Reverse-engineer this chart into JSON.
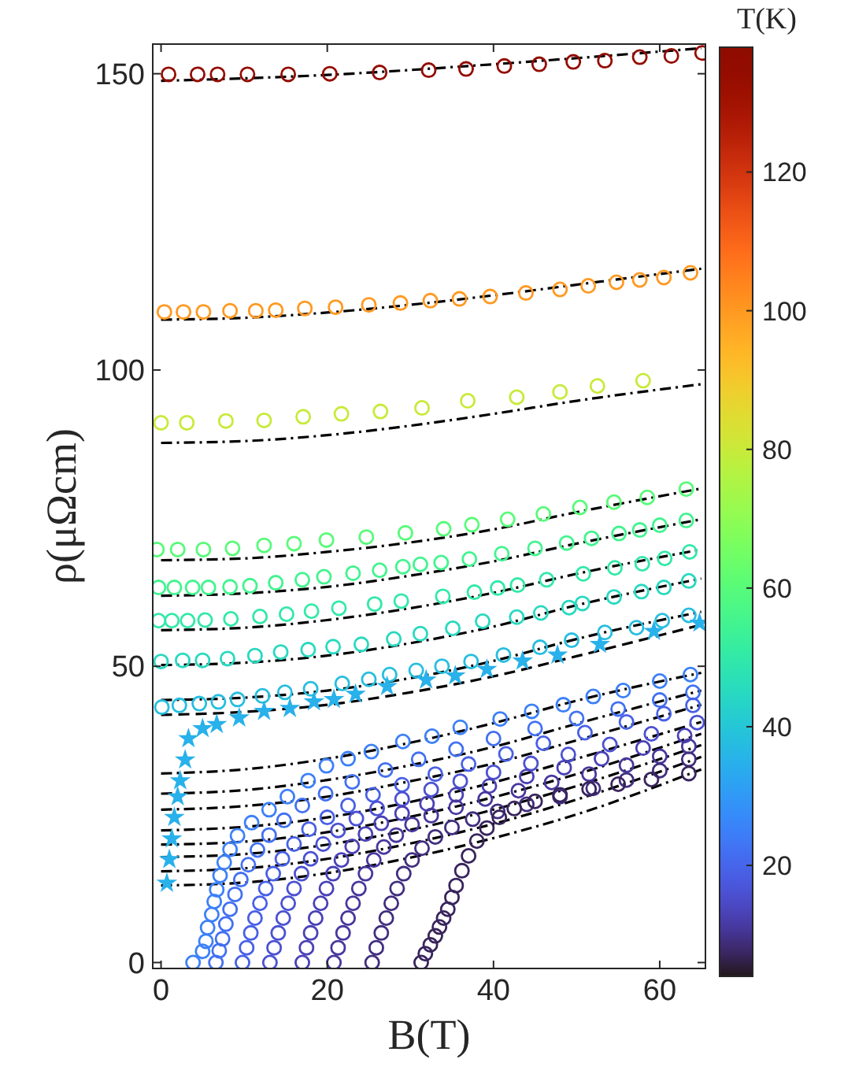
{
  "chart_data": {
    "type": "scatter",
    "xlabel": "B(T)",
    "ylabel": "ρ(μΩcm)",
    "clabel": "T(K)",
    "xlim": [
      -1,
      65.5
    ],
    "ylim": [
      -1,
      155
    ],
    "xticks": [
      0,
      20,
      40,
      60
    ],
    "yticks": [
      0,
      50,
      100,
      150
    ],
    "clim": [
      4,
      138
    ],
    "cticks": [
      20,
      40,
      60,
      80,
      100,
      120
    ],
    "grid": false,
    "marker": "circle",
    "series": [
      {
        "type": "line",
        "color": "#000000",
        "line_style": "dashdot",
        "marker": "none",
        "x": [
          0,
          20,
          40,
          65
        ],
        "values": [
          148.8,
          149.8,
          151.6,
          154.3
        ]
      },
      {
        "type": "line",
        "color": "#000000",
        "line_style": "dashdot",
        "marker": "none",
        "x": [
          0,
          10,
          20,
          30,
          40,
          50,
          65
        ],
        "values": [
          108.5,
          108.8,
          109.7,
          111,
          112.6,
          114.4,
          117.1
        ]
      },
      {
        "type": "line",
        "color": "#000000",
        "line_style": "dashdot",
        "marker": "none",
        "x": [
          0,
          10,
          20,
          30,
          40,
          50,
          65
        ],
        "values": [
          87.7,
          88,
          89,
          90.6,
          92.6,
          94.8,
          97.6
        ]
      },
      {
        "type": "line",
        "color": "#000000",
        "line_style": "dashdot",
        "marker": "none",
        "x": [
          0,
          10,
          20,
          30,
          40,
          50,
          65
        ],
        "values": [
          67.9,
          68.2,
          69.3,
          70.9,
          73.1,
          76,
          80
        ]
      },
      {
        "type": "line",
        "color": "#000000",
        "line_style": "dashdot",
        "marker": "none",
        "x": [
          0,
          10,
          20,
          30,
          40,
          50,
          65
        ],
        "values": [
          61.9,
          62.3,
          63.4,
          65.3,
          67.7,
          70.7,
          74.8
        ]
      },
      {
        "type": "line",
        "color": "#000000",
        "line_style": "dashdot",
        "marker": "none",
        "x": [
          0,
          10,
          20,
          30,
          40,
          50,
          65
        ],
        "values": [
          56.1,
          56.5,
          57.8,
          59.8,
          62.4,
          65.6,
          69.7
        ]
      },
      {
        "type": "line",
        "color": "#000000",
        "line_style": "dashdot",
        "marker": "none",
        "x": [
          0,
          10,
          20,
          30,
          40,
          50,
          65
        ],
        "values": [
          50.2,
          50.6,
          51.8,
          53.9,
          56.7,
          60.3,
          64.8
        ]
      },
      {
        "type": "line",
        "color": "#000000",
        "line_style": "dashdot",
        "marker": "none",
        "x": [
          0,
          10,
          20,
          30,
          40,
          50,
          65
        ],
        "values": [
          44.3,
          44.7,
          45.9,
          48,
          50.9,
          54.6,
          59.2
        ]
      },
      {
        "type": "line",
        "color": "#000000",
        "line_style": "dashed",
        "marker": "none",
        "x": [
          0,
          10,
          20,
          30,
          40,
          50,
          65
        ],
        "values": [
          41.8,
          42.3,
          43.5,
          45.6,
          48.3,
          51.7,
          57
        ]
      },
      {
        "type": "line",
        "color": "#000000",
        "line_style": "dashdot",
        "marker": "none",
        "x": [
          0,
          10,
          20,
          30,
          40,
          50,
          65
        ],
        "values": [
          31.9,
          32.6,
          34.4,
          37.1,
          40.4,
          44.2,
          48.9
        ]
      },
      {
        "type": "line",
        "color": "#000000",
        "line_style": "dashdot",
        "marker": "none",
        "x": [
          0,
          10,
          20,
          30,
          40,
          50,
          65
        ],
        "values": [
          28.5,
          29.1,
          30.8,
          33.3,
          36.4,
          40.3,
          45.9
        ]
      },
      {
        "type": "line",
        "color": "#000000",
        "line_style": "dashdot",
        "marker": "none",
        "x": [
          0,
          10,
          20,
          30,
          40,
          50,
          65
        ],
        "values": [
          25.8,
          26.4,
          28,
          30.6,
          33.6,
          37.5,
          43.5
        ]
      },
      {
        "type": "line",
        "color": "#000000",
        "line_style": "dashdot",
        "marker": "none",
        "x": [
          0,
          10,
          20,
          30,
          40,
          50,
          65
        ],
        "values": [
          22.3,
          22.9,
          24.5,
          27.1,
          30.4,
          34.4,
          40.6
        ]
      },
      {
        "type": "line",
        "color": "#000000",
        "line_style": "dashdot",
        "marker": "none",
        "x": [
          0,
          10,
          20,
          30,
          40,
          50,
          65
        ],
        "values": [
          19.9,
          20.4,
          22,
          24.6,
          27.9,
          31.8,
          38.6
        ]
      },
      {
        "type": "line",
        "color": "#000000",
        "line_style": "dashdot",
        "marker": "none",
        "x": [
          0,
          10,
          20,
          30,
          40,
          50,
          65
        ],
        "values": [
          17.8,
          18.3,
          19.9,
          22.4,
          25.8,
          29.8,
          36.7
        ]
      },
      {
        "type": "line",
        "color": "#000000",
        "line_style": "dashdot",
        "marker": "none",
        "x": [
          0,
          10,
          20,
          30,
          40,
          50,
          65
        ],
        "values": [
          15.4,
          15.9,
          17.5,
          20.1,
          23.4,
          27.5,
          34.7
        ]
      },
      {
        "type": "line",
        "color": "#000000",
        "line_style": "dashdot",
        "marker": "none",
        "x": [
          0,
          10,
          20,
          30,
          40,
          50,
          65
        ],
        "values": [
          13,
          13.5,
          15.1,
          17.7,
          21,
          25,
          32.6
        ]
      },
      {
        "x": [
          0.9,
          4.4,
          6.8,
          10.4,
          15.3,
          20.3,
          26.3,
          32.2,
          36.7,
          41.3,
          45.5,
          49.6,
          53.4,
          57.6,
          61.4,
          65.1
        ],
        "values": [
          149.9,
          149.9,
          149.9,
          149.9,
          149.9,
          150,
          150.2,
          150.6,
          150.8,
          151.3,
          151.6,
          152,
          152.2,
          152.8,
          153,
          153.5
        ],
        "cvalues": [
          135,
          135,
          135,
          135,
          135,
          135,
          135,
          135,
          135,
          135,
          135,
          135,
          135,
          135,
          135,
          135
        ]
      },
      {
        "x": [
          0.4,
          2.7,
          5.1,
          8.3,
          11.4,
          13.8,
          17.3,
          21,
          25,
          28.8,
          32.4,
          35.9,
          39.6,
          43.9,
          48,
          51.4,
          54.8,
          57.6,
          60.5,
          63.7
        ],
        "values": [
          109.8,
          109.8,
          109.8,
          110,
          110,
          110.1,
          110.4,
          110.6,
          111,
          111.3,
          111.7,
          112,
          112.4,
          113,
          113.6,
          114.2,
          114.8,
          115.2,
          115.6,
          116.4
        ],
        "cvalues": [
          100,
          100,
          100,
          100,
          100,
          100,
          100,
          100,
          100,
          100,
          100,
          100,
          100,
          100,
          100,
          100,
          100,
          100,
          100,
          100
        ]
      },
      {
        "x": [
          0,
          3.1,
          7.8,
          12.4,
          17.1,
          21.7,
          26.4,
          31.4,
          36.9,
          42.8,
          48,
          52.5,
          58
        ],
        "values": [
          91.1,
          91.1,
          91.4,
          91.5,
          92.1,
          92.6,
          93,
          93.6,
          94.8,
          95.4,
          96.3,
          97.3,
          98.2
        ],
        "cvalues": [
          80,
          80,
          80,
          80,
          80,
          80,
          80,
          80,
          80,
          80,
          80,
          80,
          80
        ]
      },
      {
        "x": [
          -0.5,
          2,
          5.1,
          8.6,
          12.4,
          16,
          19.9,
          24.7,
          29.4,
          34,
          37.4,
          41.7,
          46,
          50.4,
          54.5,
          58.5,
          63.2
        ],
        "values": [
          69.7,
          69.7,
          69.7,
          69.9,
          70.4,
          70.7,
          71.3,
          71.8,
          72.5,
          73.2,
          73.9,
          74.8,
          75.7,
          76.8,
          77.7,
          78.5,
          79.9
        ],
        "cvalues": [
          60,
          60,
          60,
          60,
          60,
          60,
          60,
          60,
          60,
          60,
          60,
          60,
          60,
          60,
          60,
          60,
          60
        ]
      },
      {
        "x": [
          -0.3,
          1.6,
          3.8,
          5.7,
          8.3,
          10.7,
          13.8,
          17,
          19.6,
          23.1,
          26.3,
          29.1,
          31.2,
          33.7,
          37.1,
          41,
          45,
          48.8,
          51.8,
          55.1,
          57.6,
          60,
          63.2
        ],
        "values": [
          63.3,
          63.3,
          63.3,
          63.3,
          63.4,
          63.6,
          64.1,
          64.6,
          65.1,
          65.7,
          66.2,
          66.8,
          67.2,
          67.5,
          68.1,
          69,
          69.9,
          70.8,
          71.6,
          72.4,
          73,
          73.8,
          74.6
        ],
        "cvalues": [
          55,
          55,
          55,
          55,
          55,
          55,
          55,
          55,
          55,
          55,
          55,
          55,
          55,
          55,
          55,
          55,
          55,
          55,
          55,
          55,
          55,
          55,
          55
        ]
      },
      {
        "x": [
          -0.3,
          1.3,
          3.2,
          5.3,
          8.4,
          11.9,
          15.1,
          18.1,
          21.4,
          25.7,
          28.9,
          33.9,
          37.7,
          40.5,
          42.9,
          46.4,
          50.8,
          54.6,
          57.9,
          60.6,
          63.6
        ],
        "values": [
          57.7,
          57.7,
          57.7,
          57.8,
          58,
          58.4,
          58.8,
          59.3,
          59.8,
          60.5,
          61,
          61.8,
          62.5,
          63.2,
          63.7,
          64.6,
          65.6,
          66.6,
          67.3,
          68.2,
          69.3
        ],
        "cvalues": [
          50,
          50,
          50,
          50,
          50,
          50,
          50,
          50,
          50,
          50,
          50,
          50,
          50,
          50,
          50,
          50,
          50,
          50,
          50,
          50,
          50
        ]
      },
      {
        "x": [
          0,
          2.6,
          5,
          8,
          11.3,
          14.4,
          17.7,
          20.7,
          24.1,
          28,
          31.2,
          35.1,
          38.7,
          42.8,
          45.7,
          49.1,
          50.7,
          54.5,
          57.8,
          60.5,
          63.5
        ],
        "values": [
          50.8,
          51,
          51,
          51.3,
          51.8,
          52.4,
          52.8,
          53.3,
          53.7,
          54.6,
          55.5,
          56.4,
          57.6,
          58.3,
          59,
          59.9,
          60.6,
          61.7,
          62.6,
          63.3,
          64.4
        ],
        "cvalues": [
          45,
          45,
          45,
          45,
          45,
          45,
          45,
          45,
          45,
          45,
          45,
          45,
          45,
          45,
          45,
          45,
          45,
          45,
          45,
          45,
          45
        ]
      },
      {
        "x": [
          0.1,
          2.2,
          4.6,
          6.9,
          9.2,
          12.2,
          14.9,
          18,
          21.8,
          25,
          27.5,
          30.7,
          33.8,
          37.3,
          41.2,
          45.6,
          49.4,
          53.4,
          57.2,
          60.3,
          63.5
        ],
        "values": [
          43.1,
          43.4,
          43.7,
          44,
          44.4,
          45,
          45.6,
          46.2,
          47.1,
          47.8,
          48.6,
          49.3,
          50,
          50.8,
          51.9,
          53.2,
          54.4,
          55.7,
          56.5,
          57.7,
          58.6
        ],
        "cvalues": [
          38,
          38,
          38,
          38,
          38,
          38,
          38,
          38,
          38,
          38,
          38,
          38,
          38,
          38,
          38,
          38,
          38,
          38,
          38,
          38,
          38
        ]
      },
      {
        "marker": "star",
        "x": [
          0.7,
          1,
          1.3,
          1.6,
          2,
          2.3,
          2.9,
          3.3,
          5,
          6.7,
          9.4,
          12.4,
          15.5,
          18.4,
          20.8,
          23.4,
          27.2,
          31.9,
          35.4,
          39.2,
          43.5,
          47.7,
          52.8,
          59.3,
          64.8
        ],
        "values": [
          13.4,
          17.4,
          20.9,
          24.5,
          28,
          30.7,
          34.2,
          37.8,
          39.5,
          40.2,
          41.3,
          42.4,
          42.9,
          44,
          44.4,
          45.3,
          46.6,
          47.7,
          48.4,
          49.5,
          50.9,
          51.9,
          53.7,
          55.9,
          57.3
        ],
        "cvalues": [
          35,
          35,
          35,
          35,
          35,
          35,
          35,
          35,
          35,
          35,
          35,
          35,
          35,
          35,
          35,
          35,
          35,
          35,
          35,
          35,
          35,
          35,
          35,
          35,
          35
        ]
      },
      {
        "x": [
          3.85,
          5,
          5.4,
          5.6,
          6.1,
          6.4,
          6.7,
          7.1,
          7.6,
          8.3,
          9.2,
          10.9,
          13,
          15.2,
          17.7,
          19.9,
          22.5,
          25.3,
          29.1,
          32.6,
          36,
          40.8,
          44.6,
          48.4,
          52,
          55.6,
          60,
          63.7
        ],
        "values": [
          0,
          1.9,
          3.6,
          5.9,
          8.1,
          10.3,
          12.3,
          14.7,
          16.9,
          19.1,
          21.4,
          23.6,
          25.8,
          28,
          30.7,
          33.2,
          34.4,
          35.6,
          37.3,
          38.2,
          39.7,
          41.1,
          42.4,
          43.5,
          44.9,
          45.9,
          47.5,
          48.6
        ],
        "cvalues": [
          25,
          25,
          25,
          25,
          25,
          25,
          25,
          25,
          25,
          25,
          25,
          25,
          25,
          25,
          25,
          25,
          25,
          25,
          25,
          25,
          25,
          25,
          25,
          25,
          25,
          25,
          25,
          25
        ]
      },
      {
        "x": [
          6.6,
          7,
          7.4,
          7.8,
          8.3,
          8.9,
          9.6,
          10.5,
          11.6,
          13,
          14.8,
          17,
          19.8,
          23,
          27,
          31,
          35.5,
          40,
          45,
          50,
          55,
          60,
          64
        ],
        "values": [
          0,
          2,
          4,
          6.5,
          9,
          11.5,
          14,
          16.5,
          19,
          21.5,
          24,
          26.5,
          28.5,
          30.5,
          32.5,
          34.3,
          36,
          37.8,
          39.5,
          41.2,
          42.8,
          44.3,
          45.6
        ],
        "cvalues": [
          22,
          22,
          22,
          22,
          22,
          22,
          22,
          22,
          22,
          22,
          22,
          22,
          22,
          22,
          22,
          22,
          22,
          22,
          22,
          22,
          22,
          22,
          22
        ]
      },
      {
        "x": [
          9.8,
          10.3,
          10.8,
          11.3,
          11.9,
          12.6,
          13.5,
          14.6,
          16,
          17.8,
          20,
          22.5,
          25.5,
          29,
          33,
          37,
          41.5,
          46,
          51,
          56,
          60.5,
          64
        ],
        "values": [
          0,
          2.5,
          5,
          7.5,
          10,
          12.5,
          15,
          17.5,
          20,
          22.5,
          24.5,
          26.5,
          28.3,
          30,
          31.8,
          33.5,
          35.2,
          37,
          38.8,
          40.6,
          42,
          43.4
        ],
        "cvalues": [
          19,
          19,
          19,
          19,
          19,
          19,
          19,
          19,
          19,
          19,
          19,
          19,
          19,
          19,
          19,
          19,
          19,
          19,
          19,
          19,
          19,
          19
        ]
      },
      {
        "x": [
          13.1,
          13.6,
          14.1,
          14.7,
          15.3,
          16,
          16.9,
          18,
          19.5,
          21.3,
          23.5,
          26,
          29,
          32.5,
          36,
          40,
          44.5,
          49,
          54,
          59,
          64.5
        ],
        "values": [
          0,
          2.5,
          5,
          7.5,
          10,
          12.5,
          15,
          17.5,
          20,
          22.3,
          24.3,
          26,
          27.6,
          29.2,
          30.6,
          32.1,
          33.6,
          35.1,
          36.8,
          38.6,
          40.5
        ],
        "cvalues": [
          16,
          16,
          16,
          16,
          16,
          16,
          16,
          16,
          16,
          16,
          16,
          16,
          16,
          16,
          16,
          16,
          16,
          16,
          16,
          16,
          16
        ]
      },
      {
        "x": [
          17,
          17.5,
          18,
          18.6,
          19.2,
          19.9,
          20.7,
          21.7,
          23,
          24.6,
          26.5,
          29,
          32,
          35.5,
          39.5,
          44,
          48.5,
          53,
          58,
          63
        ],
        "values": [
          0,
          2.5,
          5,
          7.5,
          10,
          12.5,
          15,
          17.3,
          19.6,
          21.7,
          23.5,
          25.2,
          26.8,
          28.3,
          29.8,
          31.4,
          32.9,
          34.4,
          36.2,
          38.3
        ],
        "cvalues": [
          13,
          13,
          13,
          13,
          13,
          13,
          13,
          13,
          13,
          13,
          13,
          13,
          13,
          13,
          13,
          13,
          13,
          13,
          13,
          13
        ]
      },
      {
        "x": [
          20.8,
          21.3,
          21.9,
          22.5,
          23.1,
          23.8,
          24.6,
          25.6,
          26.8,
          28.3,
          30.2,
          32.5,
          35.5,
          39,
          43,
          47,
          51.5,
          56,
          60,
          63.5
        ],
        "values": [
          0,
          2.5,
          5,
          7.5,
          10,
          12.5,
          15,
          17.3,
          19.5,
          21.5,
          23.3,
          24.8,
          26.2,
          27.6,
          29,
          30.4,
          31.8,
          33.3,
          34.8,
          36.5
        ],
        "cvalues": [
          11,
          11,
          11,
          11,
          11,
          11,
          11,
          11,
          11,
          11,
          11,
          11,
          11,
          11,
          11,
          11,
          11,
          11,
          11,
          11
        ]
      },
      {
        "x": [
          25.4,
          25.9,
          26.5,
          27.1,
          27.7,
          28.4,
          29.2,
          30.2,
          31.4,
          33,
          35,
          37.5,
          40.5,
          44,
          48,
          52,
          56,
          60,
          63.5
        ],
        "values": [
          0,
          2.5,
          5,
          7.5,
          10,
          12.5,
          15,
          17.3,
          19.3,
          21.2,
          22.8,
          24.2,
          25.5,
          26.7,
          28,
          29.4,
          30.8,
          32.4,
          34.3
        ],
        "cvalues": [
          9,
          9,
          9,
          9,
          9,
          9,
          9,
          9,
          9,
          9,
          9,
          9,
          9,
          9,
          9,
          9,
          9,
          9,
          9
        ]
      },
      {
        "x": [
          31.3,
          31.8,
          32.4,
          33,
          33.5,
          34,
          34.5,
          35,
          35.5,
          36.2,
          37,
          38,
          39.2,
          40.7,
          42.5,
          45,
          48,
          51.5,
          55,
          59,
          63.5
        ],
        "values": [
          0,
          1.5,
          3,
          4.5,
          6,
          7.5,
          9,
          11,
          13,
          15.5,
          18,
          20.5,
          22.7,
          24.5,
          26,
          27.2,
          28.3,
          29.3,
          30.1,
          30.9,
          31.9
        ],
        "cvalues": [
          7,
          7,
          7,
          7,
          7,
          7,
          7,
          7,
          7,
          7,
          7,
          7,
          7,
          7,
          7,
          7,
          7,
          7,
          7,
          7,
          7
        ]
      }
    ]
  }
}
